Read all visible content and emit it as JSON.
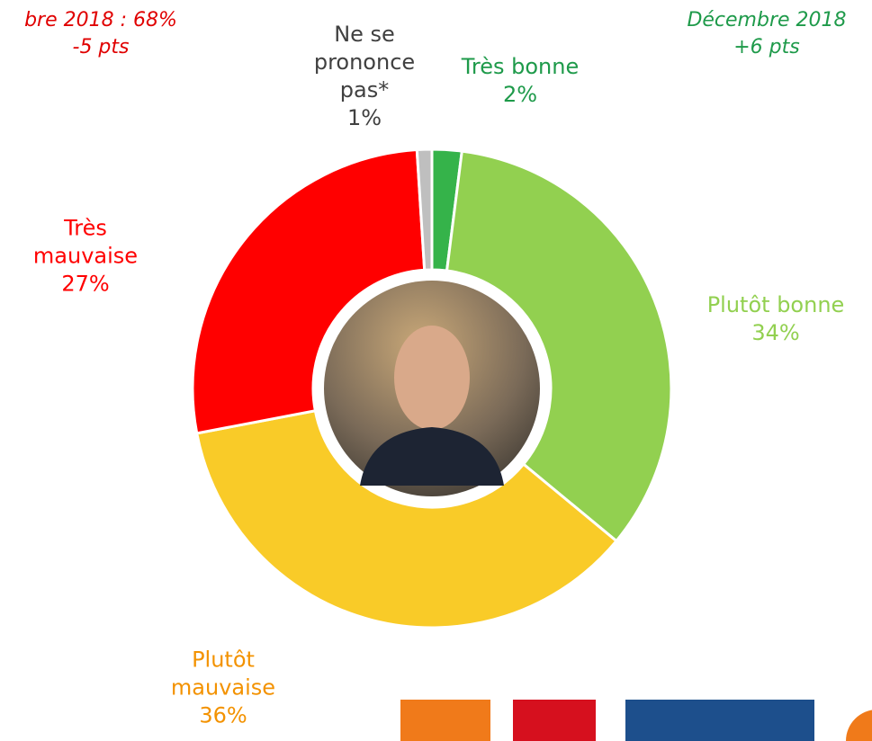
{
  "chart_data": {
    "type": "donut",
    "categories": [
      "Très bonne",
      "Plutôt bonne",
      "Plutôt mauvaise",
      "Très mauvaise",
      "Ne se prononce pas*"
    ],
    "values": [
      2,
      34,
      36,
      27,
      1
    ],
    "value_labels": [
      "2%",
      "34%",
      "36%",
      "27%",
      "1%"
    ],
    "colors": [
      "#35b34a",
      "#92d050",
      "#f9cb28",
      "#ff0000",
      "#bfbfbf"
    ],
    "label_colors": [
      "#1e9a4a",
      "#92d050",
      "#f39200",
      "#ff0000",
      "#404040"
    ],
    "annotations": [
      {
        "lines": [
          "bre 2018 : 68%",
          "-5 pts"
        ],
        "color": "#e00000"
      },
      {
        "lines": [
          "Décembre 2018",
          "+6 pts"
        ],
        "color": "#1e9a4a"
      }
    ]
  }
}
